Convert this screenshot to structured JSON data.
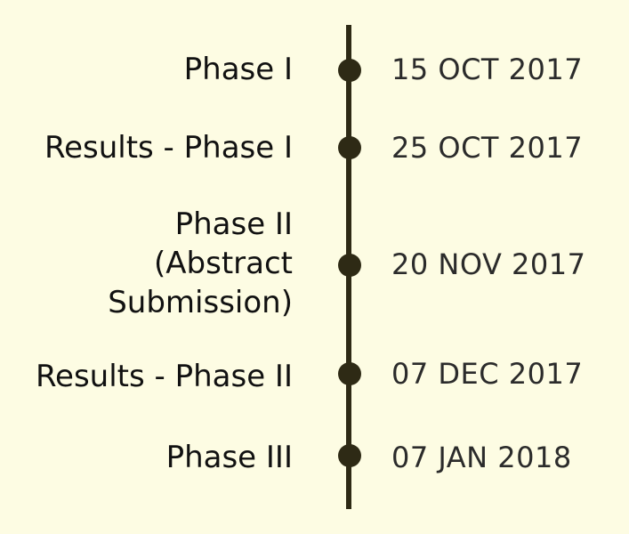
{
  "timeline": {
    "events": [
      {
        "label": "Phase I",
        "date": "15 OCT 2017"
      },
      {
        "label": "Results - Phase I",
        "date": "25 OCT 2017"
      },
      {
        "label": "Phase II\n(Abstract\nSubmission)",
        "date": "20 NOV 2017"
      },
      {
        "label": "Results - Phase II",
        "date": "07 DEC 2017"
      },
      {
        "label": "Phase III",
        "date": "07 JAN 2018"
      }
    ]
  },
  "colors": {
    "background": "#fdfce3",
    "line": "#2e2a15",
    "dot": "#2e2a15",
    "label_text": "#111111",
    "date_text": "#2b2b2b"
  }
}
